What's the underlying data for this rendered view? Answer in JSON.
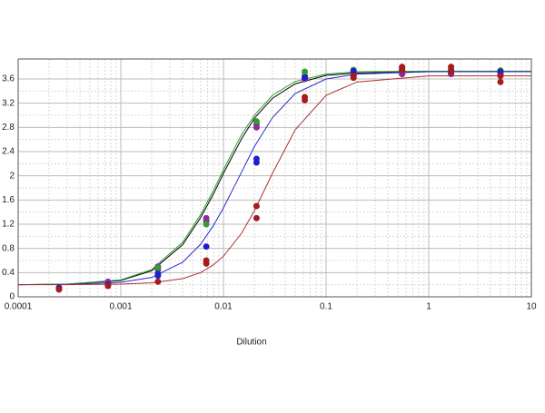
{
  "chart_data": {
    "type": "scatter",
    "xlabel": "Dilution",
    "xscale": "log",
    "xlim": [
      0.0001,
      10
    ],
    "xticks": [
      0.0001,
      0.001,
      0.01,
      0.1,
      1,
      10
    ],
    "ylim": [
      0,
      3.93
    ],
    "yticks": [
      0,
      0.4,
      0.8,
      1.2,
      1.6,
      2,
      2.4,
      2.8,
      3.2,
      3.6
    ],
    "grid": true,
    "minor_grid": true,
    "series": [
      {
        "type": "line",
        "color": "#000000",
        "x": [
          0.0001,
          0.0003,
          0.001,
          0.002,
          0.004,
          0.006,
          0.008,
          0.01,
          0.015,
          0.02,
          0.03,
          0.05,
          0.1,
          0.2,
          1,
          10
        ],
        "values": [
          0.2,
          0.21,
          0.27,
          0.43,
          0.86,
          1.31,
          1.7,
          2.04,
          2.61,
          2.95,
          3.28,
          3.52,
          3.66,
          3.7,
          3.72,
          3.72
        ]
      },
      {
        "type": "line",
        "color": "#2e9e2e",
        "x": [
          0.0001,
          0.0003,
          0.001,
          0.002,
          0.004,
          0.006,
          0.008,
          0.01,
          0.015,
          0.02,
          0.03,
          0.05,
          0.1,
          0.2,
          1,
          10
        ],
        "values": [
          0.2,
          0.21,
          0.28,
          0.45,
          0.9,
          1.36,
          1.76,
          2.1,
          2.68,
          3.0,
          3.33,
          3.56,
          3.68,
          3.72,
          3.73,
          3.73
        ]
      },
      {
        "type": "line",
        "color": "#2a2acc",
        "x": [
          0.0001,
          0.0003,
          0.001,
          0.002,
          0.004,
          0.006,
          0.008,
          0.01,
          0.015,
          0.02,
          0.03,
          0.05,
          0.1,
          0.2,
          1,
          10
        ],
        "values": [
          0.2,
          0.205,
          0.24,
          0.32,
          0.57,
          0.87,
          1.18,
          1.47,
          2.06,
          2.48,
          2.96,
          3.36,
          3.6,
          3.68,
          3.72,
          3.72
        ]
      },
      {
        "type": "line",
        "color": "#b03030",
        "x": [
          0.0001,
          0.0003,
          0.001,
          0.002,
          0.004,
          0.006,
          0.008,
          0.01,
          0.015,
          0.02,
          0.03,
          0.05,
          0.1,
          0.2,
          1,
          10
        ],
        "values": [
          0.2,
          0.2,
          0.21,
          0.23,
          0.3,
          0.4,
          0.53,
          0.67,
          1.05,
          1.42,
          2.04,
          2.76,
          3.33,
          3.55,
          3.65,
          3.65
        ]
      },
      {
        "type": "scatter",
        "color": "#8b2a9e",
        "x": [
          0.00025,
          0.00075,
          0.0023,
          0.0068,
          0.021,
          0.062,
          0.185,
          0.55,
          1.65,
          5,
          0.00025,
          0.00075,
          0.0023,
          0.0068,
          0.021,
          0.062,
          0.185,
          0.55,
          1.65,
          5
        ],
        "values": [
          0.12,
          0.22,
          0.5,
          1.3,
          2.85,
          3.65,
          3.7,
          3.72,
          3.7,
          3.7,
          0.15,
          0.25,
          0.45,
          1.25,
          2.8,
          3.6,
          3.65,
          3.68,
          3.68,
          3.68
        ]
      },
      {
        "type": "scatter",
        "color": "#2e9e2e",
        "x": [
          0.00025,
          0.00075,
          0.0023,
          0.0068,
          0.021,
          0.062,
          0.185,
          0.55,
          1.65,
          5
        ],
        "values": [
          0.15,
          0.2,
          0.48,
          1.2,
          2.9,
          3.72,
          3.75,
          3.78,
          3.76,
          3.74
        ]
      },
      {
        "type": "scatter",
        "color": "#1f1fcf",
        "x": [
          0.00025,
          0.00075,
          0.0023,
          0.0068,
          0.021,
          0.062,
          0.185,
          0.55,
          1.65,
          5,
          0.0023,
          0.021
        ],
        "values": [
          0.15,
          0.2,
          0.38,
          0.83,
          2.28,
          3.62,
          3.73,
          3.75,
          3.73,
          3.72,
          0.35,
          2.22
        ]
      },
      {
        "type": "scatter",
        "color": "#a51c1c",
        "x": [
          0.00025,
          0.00075,
          0.0023,
          0.0068,
          0.021,
          0.062,
          0.185,
          0.55,
          1.65,
          5,
          0.0068,
          0.021,
          0.062,
          0.185,
          0.55,
          1.65,
          5
        ],
        "values": [
          0.13,
          0.18,
          0.25,
          0.55,
          1.5,
          3.3,
          3.65,
          3.8,
          3.8,
          3.55,
          0.6,
          1.3,
          3.25,
          3.62,
          3.75,
          3.72,
          3.65
        ]
      }
    ]
  }
}
